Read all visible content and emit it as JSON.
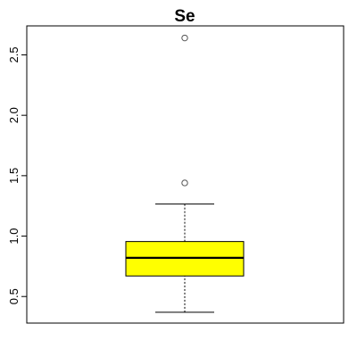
{
  "chart_data": {
    "type": "boxplot",
    "title": "Se",
    "xlabel": "",
    "ylabel": "",
    "ylim": [
      0.28,
      2.74
    ],
    "yticks": [
      0.5,
      1.0,
      1.5,
      2.0,
      2.5
    ],
    "ytick_labels": [
      "0.5",
      "1.0",
      "1.5",
      "2.0",
      "2.5"
    ],
    "grid": false,
    "box": {
      "whisker_low": 0.37,
      "q1": 0.67,
      "median": 0.82,
      "q3": 0.955,
      "whisker_high": 1.265,
      "outliers": [
        1.44,
        2.64
      ]
    },
    "colors": {
      "box_fill": "#ffff00",
      "box_stroke": "#000000",
      "axis": "#000000",
      "whisker": "#000000",
      "outlier": "#555555"
    }
  }
}
